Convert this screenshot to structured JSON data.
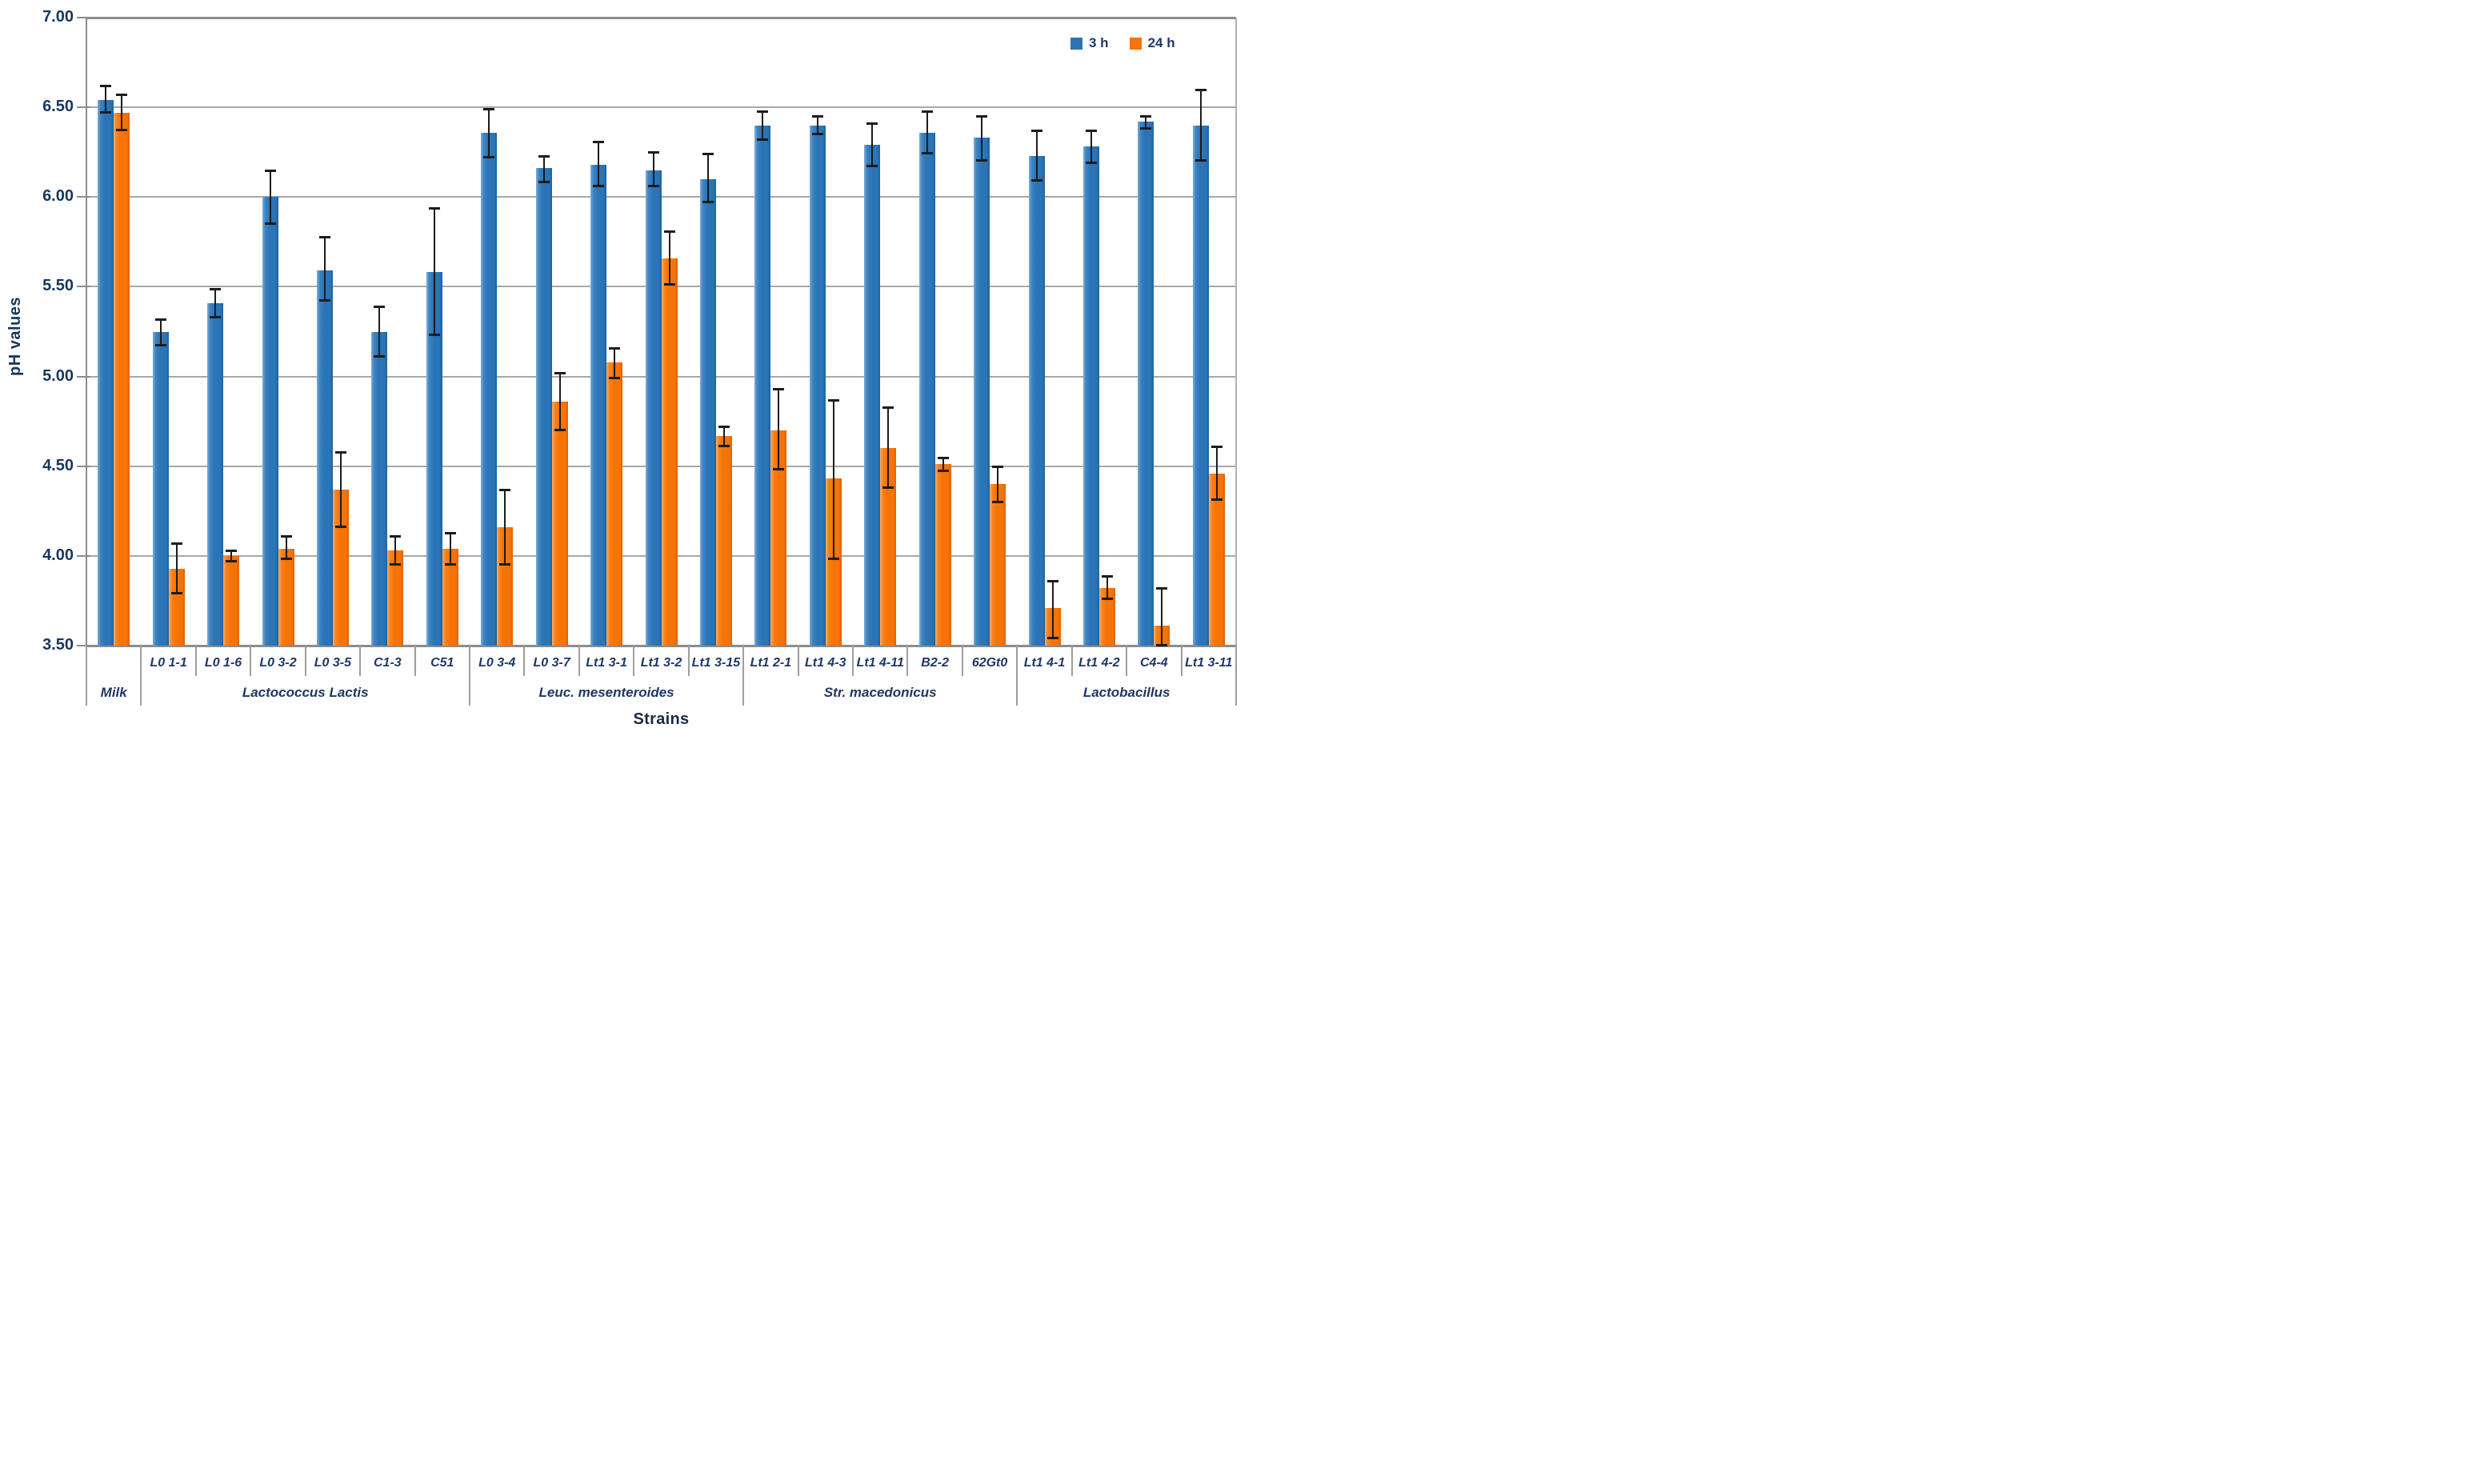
{
  "chart_data": {
    "type": "bar",
    "title": "",
    "ylabel": "pH values",
    "xlabel": "Strains",
    "ylim": [
      3.5,
      7.0
    ],
    "ytick_step": 0.5,
    "ytick_labels": [
      "7.00",
      "6.50",
      "6.00",
      "5.50",
      "5.00",
      "4.50",
      "4.00",
      "3.50"
    ],
    "grid": true,
    "legend_position": "top-right-inside",
    "categories": [
      "",
      "L0 1-1",
      "L0 1-6",
      "L0 3-2",
      "L0 3-5",
      "C1-3",
      "C51",
      "L0 3-4",
      "L0 3-7",
      "Lt1 3-1",
      "Lt1 3-2",
      "Lt1 3-15",
      "Lt1 2-1",
      "Lt1 4-3",
      "Lt1 4-11",
      "B2-2",
      "62Gt0",
      "Lt1 4-1",
      "Lt1 4-2",
      "C4-4",
      "Lt1 3-11"
    ],
    "groups": [
      {
        "label": "Milk",
        "span": 1
      },
      {
        "label": "Lactococcus Lactis",
        "span": 6
      },
      {
        "label": "Leuc. mesenteroides",
        "span": 5
      },
      {
        "label": "Str. macedonicus",
        "span": 5
      },
      {
        "label": "Lactobacillus",
        "span": 4
      }
    ],
    "series": [
      {
        "name": "3 h",
        "color": "#2B74B6",
        "values": [
          6.54,
          5.25,
          5.41,
          6.0,
          5.59,
          5.25,
          5.58,
          6.36,
          6.16,
          6.18,
          6.15,
          6.1,
          6.4,
          6.4,
          6.29,
          6.36,
          6.33,
          6.23,
          6.28,
          6.42,
          6.4
        ],
        "err_up": [
          0.08,
          0.07,
          0.08,
          0.15,
          0.19,
          0.14,
          0.36,
          0.13,
          0.07,
          0.13,
          0.1,
          0.14,
          0.08,
          0.05,
          0.12,
          0.12,
          0.12,
          0.14,
          0.09,
          0.03,
          0.2
        ],
        "err_down": [
          0.07,
          0.08,
          0.08,
          0.15,
          0.17,
          0.14,
          0.35,
          0.14,
          0.08,
          0.12,
          0.09,
          0.13,
          0.08,
          0.05,
          0.12,
          0.12,
          0.13,
          0.14,
          0.09,
          0.04,
          0.2
        ]
      },
      {
        "name": "24 h",
        "color": "#F67306",
        "values": [
          6.47,
          3.93,
          4.0,
          4.04,
          4.37,
          4.03,
          4.04,
          4.16,
          4.86,
          5.08,
          5.66,
          4.67,
          4.7,
          4.43,
          4.6,
          4.51,
          4.4,
          3.71,
          3.82,
          3.61,
          4.46
        ],
        "err_up": [
          0.1,
          0.14,
          0.03,
          0.07,
          0.21,
          0.08,
          0.09,
          0.21,
          0.16,
          0.08,
          0.15,
          0.05,
          0.23,
          0.44,
          0.23,
          0.04,
          0.1,
          0.15,
          0.07,
          0.21,
          0.15
        ],
        "err_down": [
          0.1,
          0.14,
          0.03,
          0.06,
          0.21,
          0.08,
          0.09,
          0.21,
          0.16,
          0.09,
          0.15,
          0.06,
          0.22,
          0.45,
          0.22,
          0.04,
          0.1,
          0.17,
          0.06,
          0.11,
          0.15
        ]
      }
    ],
    "colors": {
      "gridline": "#A8A8A8",
      "axis": "#8C8C8C",
      "error_bar": "#1C1C1C",
      "tick_label": "#17375E",
      "category_label": "#1F3864"
    }
  }
}
